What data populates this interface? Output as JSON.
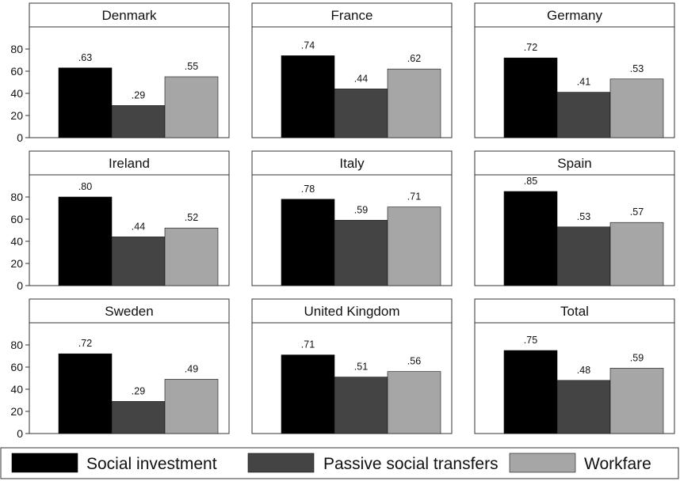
{
  "chart_data": {
    "type": "bar",
    "layout": "small-multiples 3x3",
    "series_names": [
      "Social investment",
      "Passive social transfers",
      "Workfare"
    ],
    "series_colors": [
      "#000000",
      "#444444",
      "#a6a6a6"
    ],
    "ylim": [
      0,
      100
    ],
    "yticks": [
      0,
      20,
      40,
      60,
      80
    ],
    "panels": [
      {
        "title": "Denmark",
        "values": [
          63,
          29,
          55
        ],
        "labels": [
          ".63",
          ".29",
          ".55"
        ]
      },
      {
        "title": "France",
        "values": [
          74,
          44,
          62
        ],
        "labels": [
          ".74",
          ".44",
          ".62"
        ]
      },
      {
        "title": "Germany",
        "values": [
          72,
          41,
          53
        ],
        "labels": [
          ".72",
          ".41",
          ".53"
        ]
      },
      {
        "title": "Ireland",
        "values": [
          80,
          44,
          52
        ],
        "labels": [
          ".80",
          ".44",
          ".52"
        ]
      },
      {
        "title": "Italy",
        "values": [
          78,
          59,
          71
        ],
        "labels": [
          ".78",
          ".59",
          ".71"
        ]
      },
      {
        "title": "Spain",
        "values": [
          85,
          53,
          57
        ],
        "labels": [
          ".85",
          ".53",
          ".57"
        ]
      },
      {
        "title": "Sweden",
        "values": [
          72,
          29,
          49
        ],
        "labels": [
          ".72",
          ".29",
          ".49"
        ]
      },
      {
        "title": "United Kingdom",
        "values": [
          71,
          51,
          56
        ],
        "labels": [
          ".71",
          ".51",
          ".56"
        ]
      },
      {
        "title": "Total",
        "values": [
          75,
          48,
          59
        ],
        "labels": [
          ".75",
          ".48",
          ".59"
        ]
      }
    ],
    "legend_position": "bottom"
  }
}
